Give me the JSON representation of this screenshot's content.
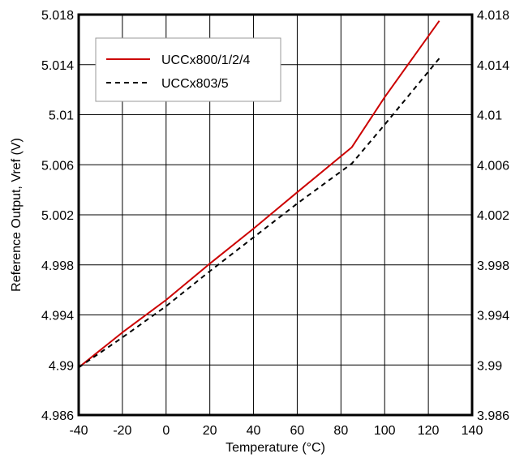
{
  "chart_data": {
    "type": "line",
    "xlabel": "Temperature (°C)",
    "ylabel": "Reference Output, Vref (V)",
    "xlim": [
      -40,
      140
    ],
    "ylim": [
      4.986,
      5.018
    ],
    "y2lim": [
      3.986,
      4.018
    ],
    "x_ticks": [
      "-40",
      "-20",
      "0",
      "20",
      "40",
      "60",
      "80",
      "100",
      "120",
      "140"
    ],
    "y_ticks": [
      "4.986",
      "4.99",
      "4.994",
      "4.998",
      "5.002",
      "5.006",
      "5.01",
      "5.014",
      "5.018"
    ],
    "y2_ticks": [
      "3.986",
      "3.99",
      "3.994",
      "3.998",
      "4.002",
      "4.006",
      "4.01",
      "4.014",
      "4.018"
    ],
    "grid": true,
    "legend_position": "top-left",
    "series": [
      {
        "name": "UCCx800/1/2/4",
        "color": "#cc0000",
        "dash": "solid",
        "x": [
          -40,
          -20,
          0,
          20,
          40,
          60,
          85,
          100,
          125
        ],
        "y": [
          4.9898,
          4.9926,
          4.9952,
          4.9981,
          5.0009,
          5.0038,
          5.0074,
          5.0114,
          5.0175
        ]
      },
      {
        "name": "UCCx803/5",
        "color": "#000000",
        "dash": "dashed",
        "x": [
          -40,
          -20,
          0,
          20,
          40,
          60,
          85,
          100,
          125
        ],
        "y": [
          4.9898,
          4.9922,
          4.9947,
          4.9975,
          5.0002,
          5.0029,
          5.0061,
          5.0092,
          5.0145
        ]
      }
    ]
  }
}
